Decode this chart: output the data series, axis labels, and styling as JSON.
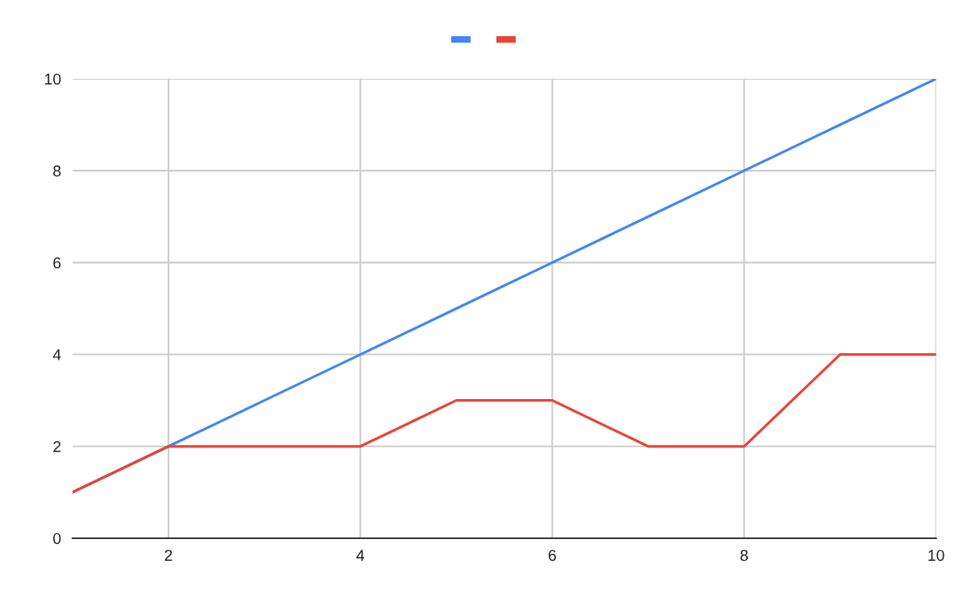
{
  "chart_data": {
    "type": "line",
    "x": [
      1,
      2,
      3,
      4,
      5,
      6,
      7,
      8,
      9,
      10
    ],
    "series": [
      {
        "color": "#4285f4",
        "values": [
          1,
          2,
          3,
          4,
          5,
          6,
          7,
          8,
          9,
          10
        ]
      },
      {
        "color": "#ea4335",
        "values": [
          1,
          2,
          2,
          2,
          3,
          3,
          2,
          2,
          4,
          4
        ]
      }
    ],
    "xlim": [
      1,
      10
    ],
    "xticks": [
      2,
      4,
      6,
      8,
      10
    ],
    "ylim": [
      0,
      10
    ],
    "yticks": [
      0,
      2,
      4,
      6,
      8,
      10
    ],
    "grid": true,
    "marker": "none",
    "line_style": "solid"
  }
}
